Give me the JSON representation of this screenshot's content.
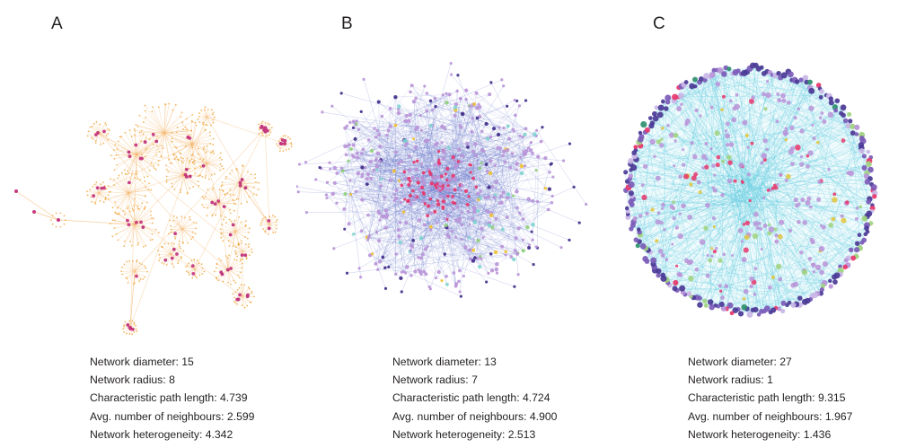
{
  "panels": [
    {
      "letter": "A",
      "edge_color": "#f4b56a",
      "node_colors": [
        "#f0a63c",
        "#c7397e",
        "#c1337a",
        "#e89b2f"
      ],
      "stats": [
        {
          "label": "Network diameter:",
          "value": "15"
        },
        {
          "label": "Network radius:",
          "value": "8"
        },
        {
          "label": "Characteristic path length:",
          "value": "4.739"
        },
        {
          "label": "Avg. number of neighbours:",
          "value": "2.599"
        },
        {
          "label": "Network heterogeneity:",
          "value": "4.342"
        }
      ]
    },
    {
      "letter": "B",
      "edge_color": "#4a5ec2",
      "node_colors": [
        "#5a6ad0",
        "#b993d8",
        "#e8356b",
        "#f2c230",
        "#7ed4cf",
        "#3e2a88",
        "#8fcf7a"
      ],
      "stats": [
        {
          "label": "Network diameter:",
          "value": "13"
        },
        {
          "label": "Network radius:",
          "value": "7"
        },
        {
          "label": "Characteristic path length:",
          "value": "4.724"
        },
        {
          "label": "Avg. number of neighbours:",
          "value": "4.900"
        },
        {
          "label": "Network heterogeneity:",
          "value": "2.513"
        }
      ]
    },
    {
      "letter": "C",
      "edge_color": "#62cde0",
      "node_colors": [
        "#b993d8",
        "#4b3a96",
        "#e8356b",
        "#9fd27e",
        "#e0c43c",
        "#7b5bb8",
        "#c9b6e6",
        "#2f8f6e"
      ],
      "stats": [
        {
          "label": "Network diameter:",
          "value": "27"
        },
        {
          "label": "Network radius:",
          "value": "1"
        },
        {
          "label": "Characteristic path length:",
          "value": "9.315"
        },
        {
          "label": "Avg. number of neighbours:",
          "value": "1.967"
        },
        {
          "label": "Network heterogeneity:",
          "value": "1.436"
        }
      ]
    }
  ]
}
